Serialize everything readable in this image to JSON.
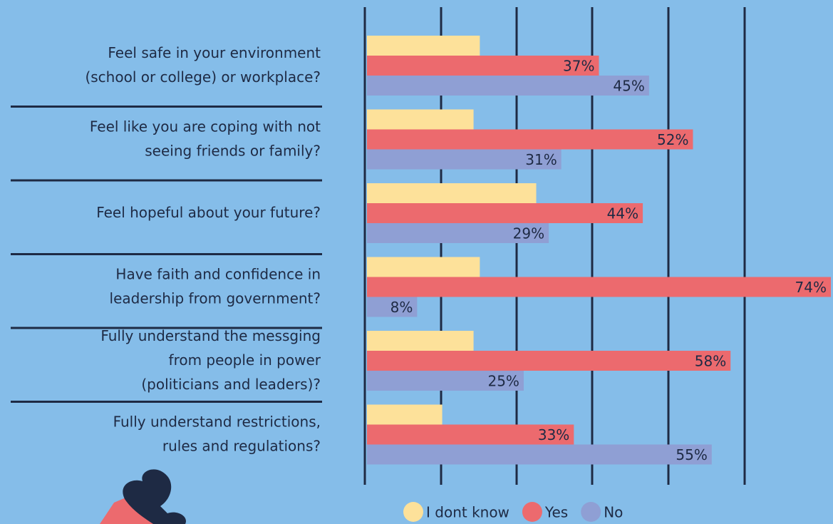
{
  "chart_data": {
    "type": "bar",
    "orientation": "horizontal",
    "categories": [
      "Feel safe in your environment\n(school or college) or workplace?",
      "Feel like you are coping with not\nseeing friends or family?",
      "Feel hopeful about your future?",
      "Have faith and confidence in\nleadership from government?",
      "Fully understand the messging\nfrom people in power\n(politicians and leaders)?",
      "Fully understand restrictions,\nrules and regulations?"
    ],
    "series": [
      {
        "name": "I dont know",
        "color": "#fde19a",
        "values": [
          18,
          17,
          27,
          18,
          17,
          12
        ]
      },
      {
        "name": "Yes",
        "color": "#ec6a6e",
        "values": [
          37,
          52,
          44,
          74,
          58,
          33
        ],
        "value_labels": [
          "37%",
          "52%",
          "44%",
          "74%",
          "58%",
          "33%"
        ]
      },
      {
        "name": "No",
        "color": "#8f9fd4",
        "values": [
          45,
          31,
          29,
          8,
          25,
          55
        ],
        "value_labels": [
          "45%",
          "31%",
          "29%",
          "8%",
          "25%",
          "55%"
        ]
      }
    ],
    "xlim": [
      0,
      74
    ]
  }
}
